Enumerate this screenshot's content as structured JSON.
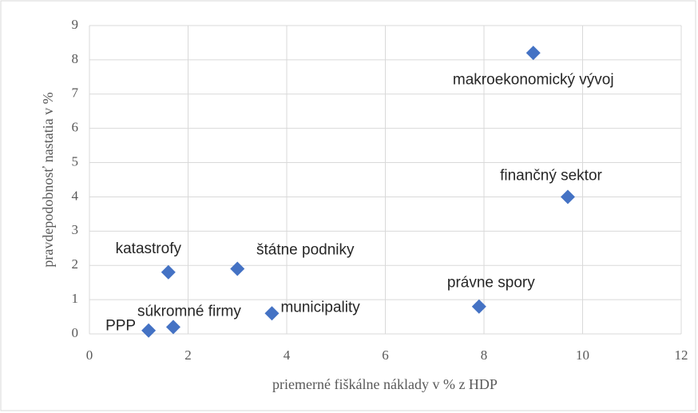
{
  "chart_data": {
    "type": "scatter",
    "x_label": "priemerné fiškálne náklady v % z HDP",
    "y_label": "pravdepodobnosť nastatia v %",
    "series": [
      {
        "color": "#4472c4",
        "labels": [
          "makroekonomický vývoj",
          "finančný sektor",
          "právne spory",
          "štátne podniky",
          "katastrofy",
          "municipality",
          "súkromné firmy",
          "PPP"
        ],
        "x": [
          9.0,
          9.7,
          7.9,
          3.0,
          1.6,
          3.7,
          1.7,
          1.2
        ],
        "values": [
          8.2,
          4.0,
          0.8,
          1.9,
          1.8,
          0.6,
          0.2,
          0.1
        ]
      }
    ],
    "xlim": [
      0,
      12
    ],
    "xticks": [
      0,
      2,
      4,
      6,
      8,
      10,
      12
    ],
    "ylim": [
      0,
      9
    ],
    "yticks": [
      0,
      1,
      2,
      3,
      4,
      5,
      6,
      7,
      8,
      9
    ],
    "grid": true
  }
}
